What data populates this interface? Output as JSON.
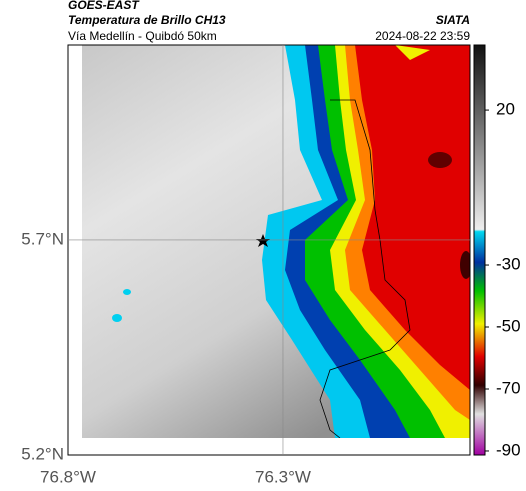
{
  "header": {
    "source": "GOES-EAST",
    "title": "Temperatura de Brillo CH13",
    "region": "Vía Medellín - Quibdó 50km",
    "agency": "SIATA",
    "datetime": "2024-08-22 23:59"
  },
  "map": {
    "xlim": [
      -76.8,
      -75.865
    ],
    "ylim": [
      5.2,
      6.153
    ],
    "xticks": [
      {
        "value": -76.8,
        "label": "76.8°W"
      },
      {
        "value": -76.3,
        "label": "76.3°W"
      }
    ],
    "yticks": [
      {
        "value": 5.7,
        "label": "5.7°N"
      },
      {
        "value": 5.2,
        "label": "5.2°N"
      }
    ]
  },
  "colorbar": {
    "lim": [
      -91.3,
      41
    ],
    "ticks": [
      20,
      -30,
      -50,
      -70,
      -90
    ]
  }
}
